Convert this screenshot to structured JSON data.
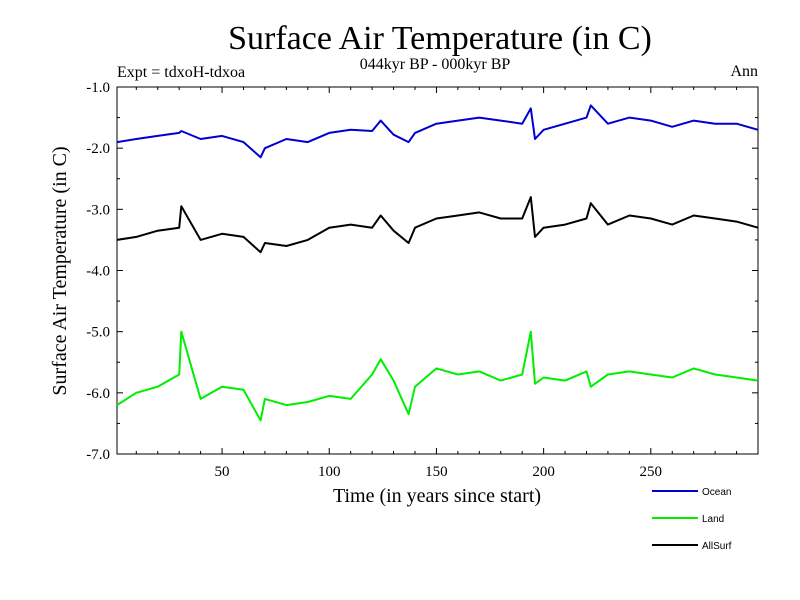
{
  "chart_data": {
    "type": "line",
    "title": "Surface Air Temperature (in C)",
    "subtitle": "044kyr BP - 000kyr BP",
    "left_label": "Expt = tdxoH-tdxoa",
    "right_label": "Ann",
    "xlabel": "Time (in years since start)",
    "ylabel": "Surface Air Temperature (in C)",
    "xlim": [
      1,
      300
    ],
    "ylim": [
      -7.0,
      -1.0
    ],
    "x_ticks": [
      50,
      100,
      150,
      200,
      250
    ],
    "y_ticks": [
      -1.0,
      -2.0,
      -3.0,
      -4.0,
      -5.0,
      -6.0,
      -7.0
    ],
    "y_tick_labels": [
      "-1.0",
      "-2.0",
      "-3.0",
      "-4.0",
      "-5.0",
      "-6.0",
      "-7.0"
    ],
    "grid": false,
    "legend_position": "bottom-right, below plot",
    "x": [
      1,
      10,
      20,
      30,
      31,
      40,
      50,
      60,
      68,
      70,
      80,
      90,
      100,
      110,
      120,
      124,
      130,
      137,
      140,
      150,
      160,
      170,
      180,
      190,
      194,
      196,
      200,
      210,
      220,
      222,
      230,
      240,
      250,
      260,
      270,
      280,
      290,
      300
    ],
    "series": [
      {
        "name": "Ocean",
        "color": "#0000d0",
        "values": [
          -1.9,
          -1.85,
          -1.8,
          -1.75,
          -1.72,
          -1.85,
          -1.8,
          -1.9,
          -2.15,
          -2.0,
          -1.85,
          -1.9,
          -1.75,
          -1.7,
          -1.72,
          -1.55,
          -1.78,
          -1.9,
          -1.75,
          -1.6,
          -1.55,
          -1.5,
          -1.55,
          -1.6,
          -1.35,
          -1.85,
          -1.7,
          -1.6,
          -1.5,
          -1.3,
          -1.6,
          -1.5,
          -1.55,
          -1.65,
          -1.55,
          -1.6,
          -1.6,
          -1.7
        ]
      },
      {
        "name": "Land",
        "color": "#00ee00",
        "values": [
          -6.2,
          -6.0,
          -5.9,
          -5.7,
          -5.0,
          -6.1,
          -5.9,
          -5.95,
          -6.45,
          -6.1,
          -6.2,
          -6.15,
          -6.05,
          -6.1,
          -5.7,
          -5.45,
          -5.8,
          -6.35,
          -5.9,
          -5.6,
          -5.7,
          -5.65,
          -5.8,
          -5.7,
          -5.0,
          -5.85,
          -5.75,
          -5.8,
          -5.65,
          -5.9,
          -5.7,
          -5.65,
          -5.7,
          -5.75,
          -5.6,
          -5.7,
          -5.75,
          -5.8
        ]
      },
      {
        "name": "AllSurf",
        "color": "#000000",
        "values": [
          -3.5,
          -3.45,
          -3.35,
          -3.3,
          -2.95,
          -3.5,
          -3.4,
          -3.45,
          -3.7,
          -3.55,
          -3.6,
          -3.5,
          -3.3,
          -3.25,
          -3.3,
          -3.1,
          -3.35,
          -3.55,
          -3.3,
          -3.15,
          -3.1,
          -3.05,
          -3.15,
          -3.15,
          -2.8,
          -3.45,
          -3.3,
          -3.25,
          -3.15,
          -2.9,
          -3.25,
          -3.1,
          -3.15,
          -3.25,
          -3.1,
          -3.15,
          -3.2,
          -3.3
        ]
      }
    ]
  }
}
